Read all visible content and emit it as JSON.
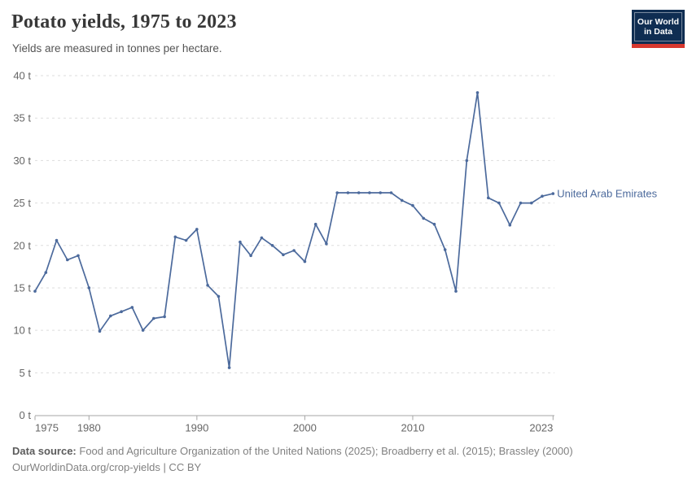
{
  "header": {
    "title": "Potato yields, 1975 to 2023",
    "subtitle": "Yields are measured in tonnes per hectare.",
    "logo": {
      "line1": "Our World",
      "line2": "in Data"
    }
  },
  "chart_data": {
    "type": "line",
    "title": "Potato yields, 1975 to 2023",
    "ylabel": "tonnes per hectare",
    "unit_suffix": " t",
    "xlim": [
      1975,
      2023
    ],
    "ylim": [
      0,
      40
    ],
    "yticks": [
      0,
      5,
      10,
      15,
      20,
      25,
      30,
      35,
      40
    ],
    "xticks": [
      1975,
      1980,
      1990,
      2000,
      2010,
      2023
    ],
    "grid": "horizontal-dashed",
    "legend_position": "end-of-line-label",
    "x": [
      1975,
      1976,
      1977,
      1978,
      1979,
      1980,
      1981,
      1982,
      1983,
      1984,
      1985,
      1986,
      1987,
      1988,
      1989,
      1990,
      1991,
      1992,
      1993,
      1994,
      1995,
      1996,
      1997,
      1998,
      1999,
      2000,
      2001,
      2002,
      2003,
      2004,
      2005,
      2006,
      2007,
      2008,
      2009,
      2010,
      2011,
      2012,
      2013,
      2014,
      2015,
      2016,
      2017,
      2018,
      2019,
      2020,
      2021,
      2022,
      2023
    ],
    "series": [
      {
        "name": "United Arab Emirates",
        "color": "#4C6A9C",
        "values": [
          14.6,
          16.8,
          20.6,
          18.3,
          18.8,
          15.0,
          9.9,
          11.7,
          12.2,
          12.7,
          10.0,
          11.4,
          11.6,
          21.0,
          20.6,
          21.9,
          15.3,
          14.0,
          5.6,
          20.4,
          18.8,
          20.9,
          20.0,
          18.9,
          19.4,
          18.1,
          22.5,
          20.2,
          26.2,
          26.2,
          26.2,
          26.2,
          26.2,
          26.2,
          25.3,
          24.7,
          23.2,
          22.5,
          19.5,
          14.6,
          30.0,
          38.0,
          25.6,
          25.0,
          22.4,
          25.0,
          25.0,
          25.8,
          26.1
        ]
      }
    ]
  },
  "footer": {
    "source_label": "Data source:",
    "source_text": "Food and Agriculture Organization of the United Nations (2025); Broadberry et al. (2015); Brassley (2000)",
    "attribution": "OurWorldinData.org/crop-yields | CC BY"
  },
  "colors": {
    "line": "#4C6A9C",
    "grid": "#dddddd",
    "axis": "#a5a5a5",
    "tick_label": "#666666",
    "title": "#383838",
    "subtitle": "#555555",
    "footer": "#818181",
    "logo_bg": "#0f2d52",
    "logo_red": "#d7382f"
  }
}
